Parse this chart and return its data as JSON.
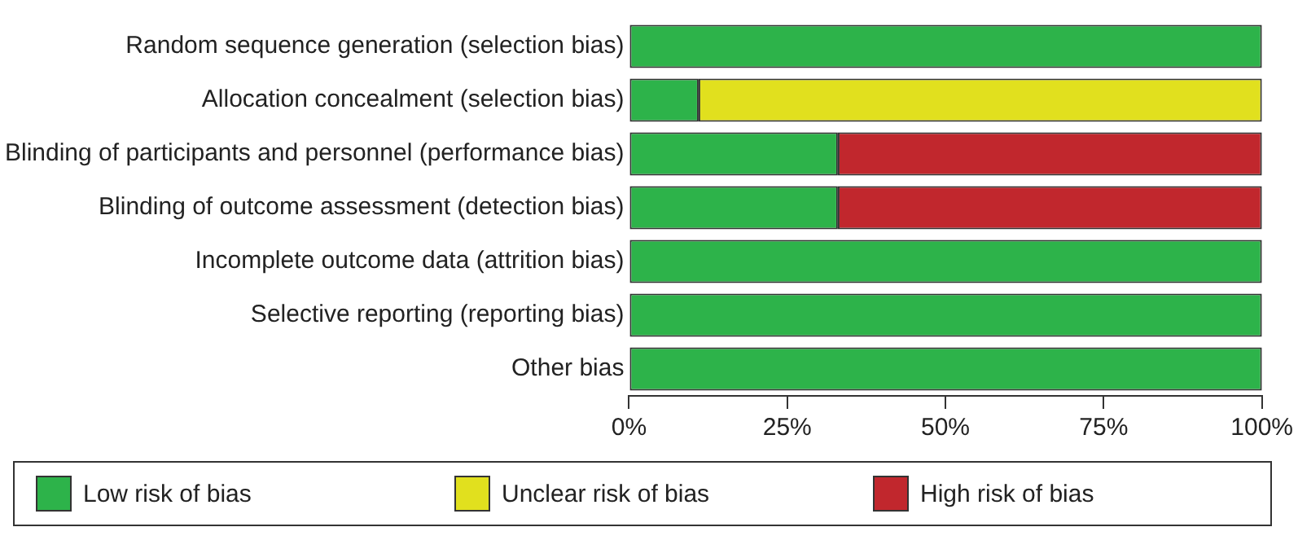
{
  "chart_data": {
    "type": "bar",
    "orientation": "horizontal",
    "stacked": true,
    "categories": [
      "Random sequence generation (selection bias)",
      "Allocation concealment (selection bias)",
      "Blinding of participants and personnel (performance bias)",
      "Blinding of outcome assessment (detection bias)",
      "Incomplete outcome data (attrition bias)",
      "Selective reporting (reporting bias)",
      "Other bias"
    ],
    "series": [
      {
        "name": "Low risk of bias",
        "color": "#2db34a",
        "values": [
          100,
          11,
          33,
          33,
          100,
          100,
          100
        ]
      },
      {
        "name": "Unclear risk of bias",
        "color": "#e1e01e",
        "values": [
          null,
          89,
          null,
          null,
          null,
          null,
          null
        ]
      },
      {
        "name": "High risk of bias",
        "color": "#c1272d",
        "values": [
          null,
          null,
          67,
          67,
          null,
          null,
          null
        ]
      }
    ],
    "xlim": [
      0,
      100
    ],
    "xticks": [
      {
        "value": 0,
        "label": "0%"
      },
      {
        "value": 25,
        "label": "25%"
      },
      {
        "value": 50,
        "label": "50%"
      },
      {
        "value": 75,
        "label": "75%"
      },
      {
        "value": 100,
        "label": "100%"
      }
    ],
    "grid": false,
    "legend": "bottom"
  }
}
